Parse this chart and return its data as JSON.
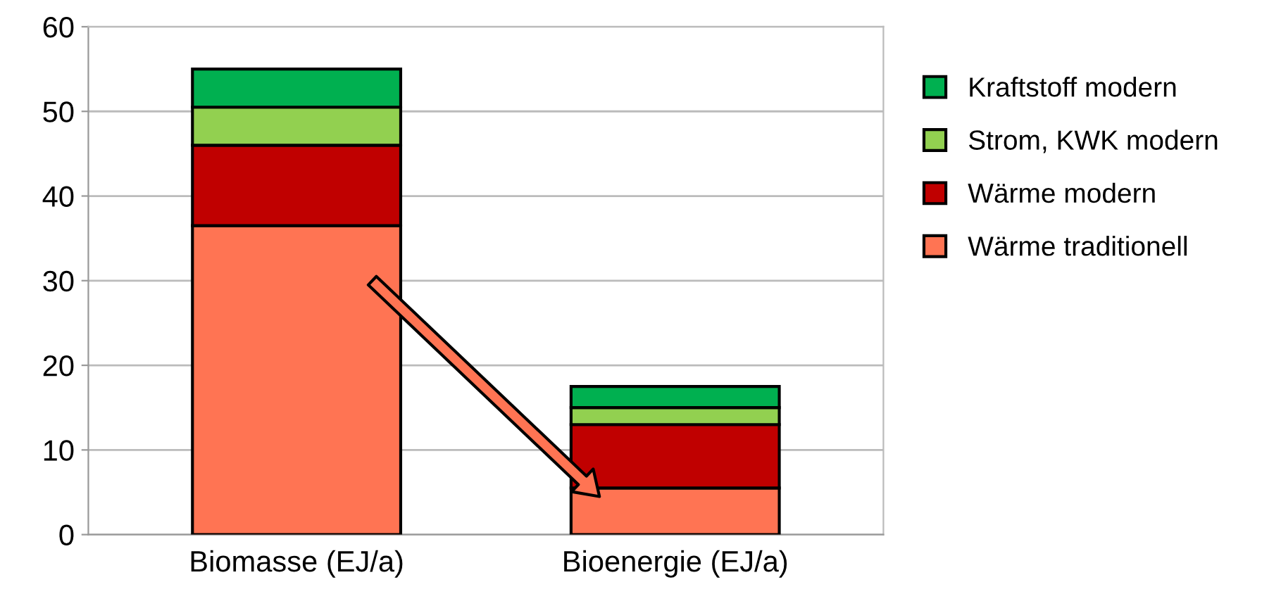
{
  "chart_data": {
    "type": "bar",
    "stacked": true,
    "categories": [
      "Biomasse (EJ/a)",
      "Bioenergie (EJ/a)"
    ],
    "series": [
      {
        "name": "Wärme traditionell",
        "color": "#ff7453",
        "values": [
          36.5,
          5.5
        ]
      },
      {
        "name": "Wärme modern",
        "color": "#c00000",
        "values": [
          9.5,
          7.5
        ]
      },
      {
        "name": "Strom, KWK modern",
        "color": "#92d050",
        "values": [
          4.5,
          2
        ]
      },
      {
        "name": "Kraftstoff modern",
        "color": "#00b050",
        "values": [
          4.5,
          2.5
        ]
      }
    ],
    "ylim": [
      0,
      60
    ],
    "yticks": [
      0,
      10,
      20,
      30,
      40,
      50,
      60
    ],
    "grid": "y",
    "legend": "right"
  }
}
